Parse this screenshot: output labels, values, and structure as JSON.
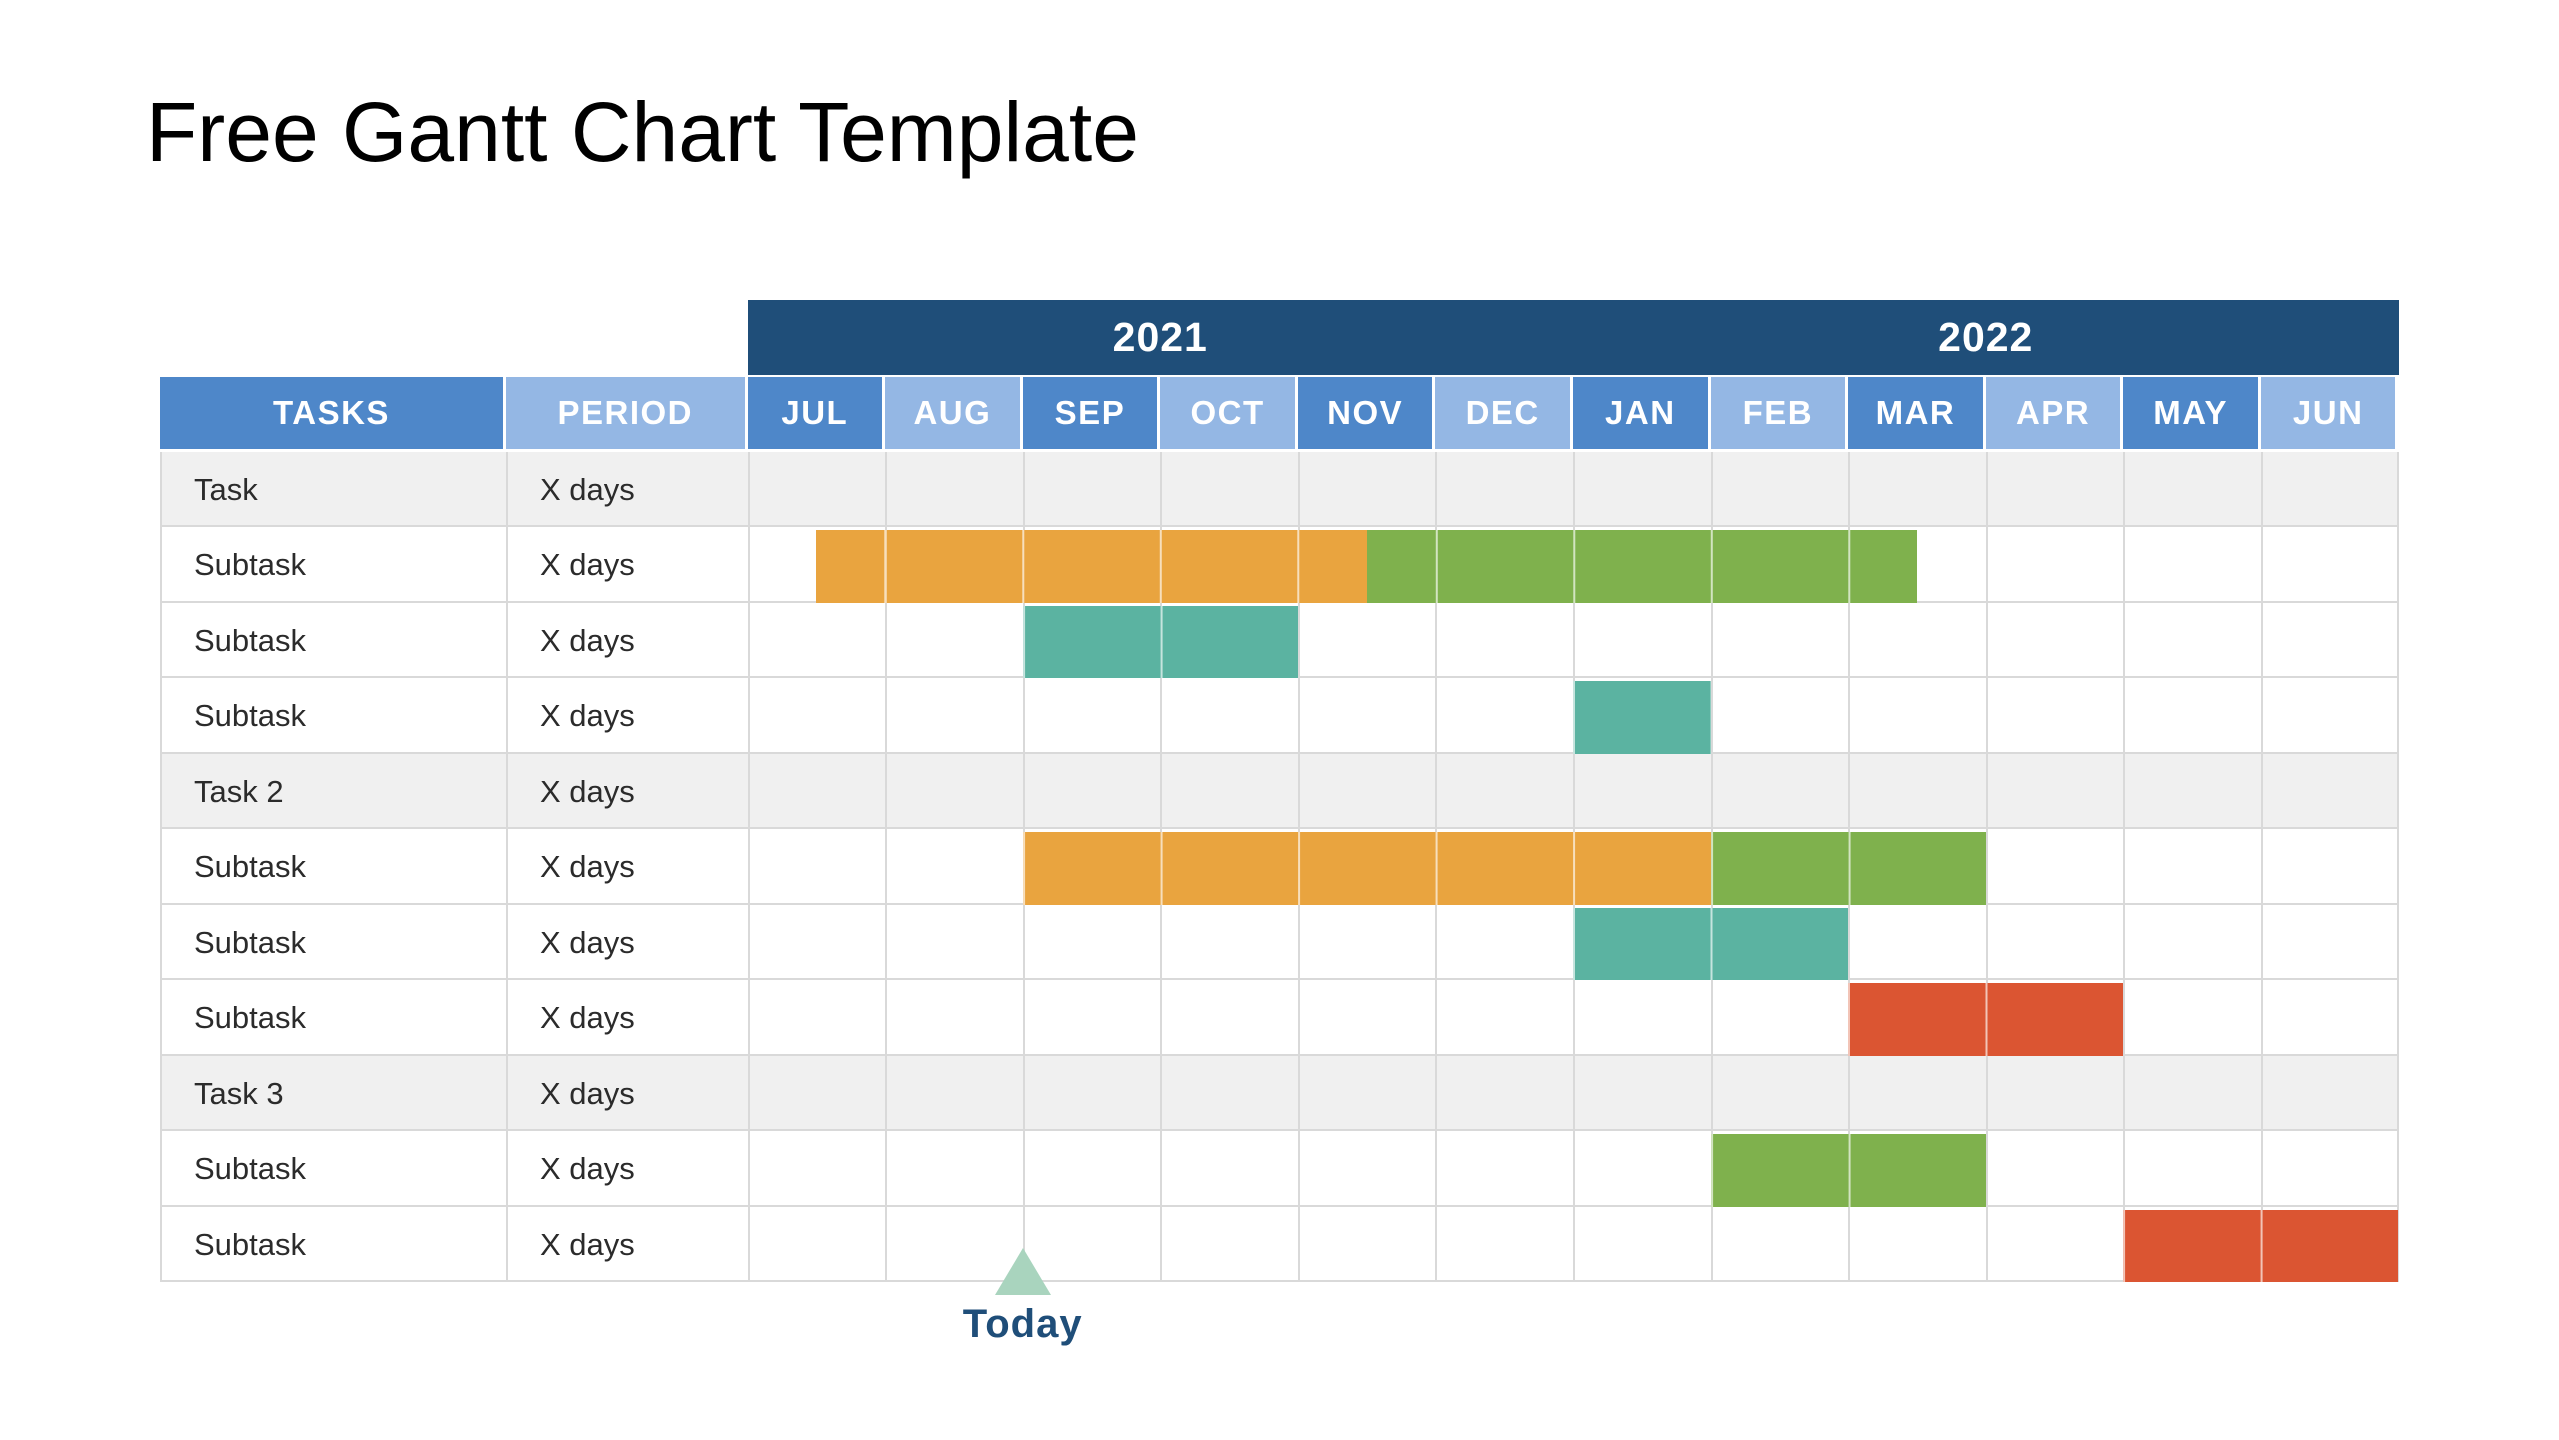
{
  "title": "Free Gantt Chart Template",
  "colors": {
    "navy": "#1F4E79",
    "header_blue": "#4E87C9",
    "header_light_blue": "#94B7E4",
    "orange": "#E9A43F",
    "green": "#7FB14D",
    "teal": "#5BB3A1",
    "red": "#DB5532",
    "mint": "#A9D4BE",
    "stripe": "#F0F0F0",
    "grid": "#D9D9D9",
    "text": "#2B2B2B"
  },
  "chart_data": {
    "type": "gantt",
    "title": "Free Gantt Chart Template",
    "columns": [
      "TASKS",
      "PERIOD"
    ],
    "years": [
      {
        "label": "2021",
        "start": 0,
        "end": 6
      },
      {
        "label": "2022",
        "start": 6,
        "end": 12
      }
    ],
    "months": [
      "JUL",
      "AUG",
      "SEP",
      "OCT",
      "NOV",
      "DEC",
      "JAN",
      "FEB",
      "MAR",
      "APR",
      "MAY",
      "JUN"
    ],
    "rows": [
      {
        "task": "Task",
        "period": "X days",
        "kind": "group",
        "bars": []
      },
      {
        "task": "Subtask",
        "period": "X days",
        "kind": "sub",
        "bars": [
          {
            "start": 0.5,
            "end": 4.5,
            "color": "orange"
          },
          {
            "start": 4.5,
            "end": 8.5,
            "color": "green"
          }
        ]
      },
      {
        "task": "Subtask",
        "period": "X days",
        "kind": "sub",
        "bars": [
          {
            "start": 2,
            "end": 4,
            "color": "teal"
          }
        ]
      },
      {
        "task": "Subtask",
        "period": "X days",
        "kind": "sub",
        "bars": [
          {
            "start": 6,
            "end": 7,
            "color": "teal"
          }
        ]
      },
      {
        "task": "Task 2",
        "period": "X days",
        "kind": "group",
        "bars": []
      },
      {
        "task": "Subtask",
        "period": "X days",
        "kind": "sub",
        "bars": [
          {
            "start": 2,
            "end": 7,
            "color": "orange"
          },
          {
            "start": 7,
            "end": 9,
            "color": "green"
          }
        ]
      },
      {
        "task": "Subtask",
        "period": "X days",
        "kind": "sub",
        "bars": [
          {
            "start": 6,
            "end": 8,
            "color": "teal"
          }
        ]
      },
      {
        "task": "Subtask",
        "period": "X days",
        "kind": "sub",
        "bars": [
          {
            "start": 8,
            "end": 10,
            "color": "red"
          }
        ]
      },
      {
        "task": "Task 3",
        "period": "X days",
        "kind": "group",
        "bars": []
      },
      {
        "task": "Subtask",
        "period": "X days",
        "kind": "sub",
        "bars": [
          {
            "start": 7,
            "end": 9,
            "color": "green"
          }
        ]
      },
      {
        "task": "Subtask",
        "period": "X days",
        "kind": "sub",
        "bars": [
          {
            "start": 10,
            "end": 12,
            "color": "red"
          }
        ]
      }
    ],
    "today": {
      "label": "Today",
      "month": 2
    },
    "axis": {
      "month_columns": 12,
      "year_span_months": 6
    }
  }
}
